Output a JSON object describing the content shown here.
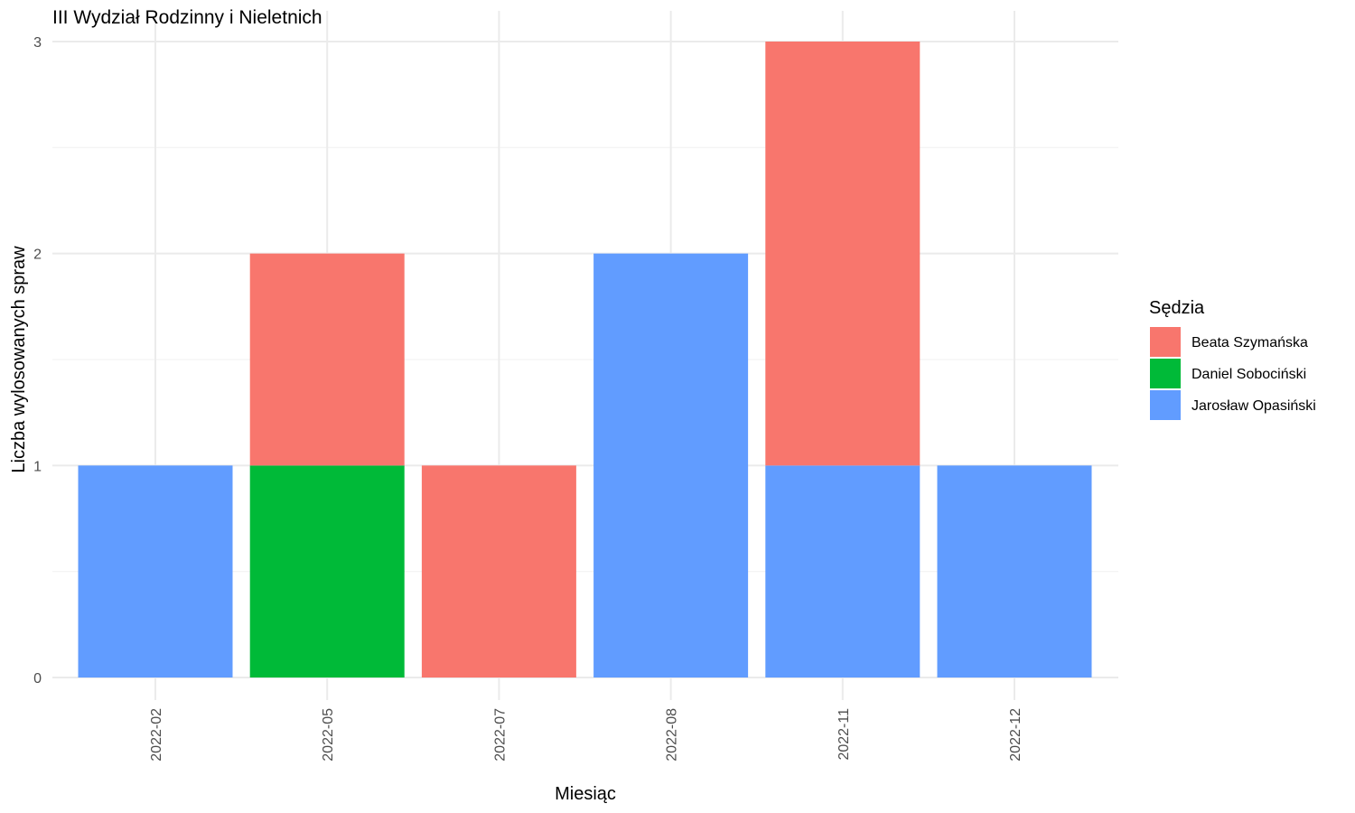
{
  "chart_data": {
    "type": "bar",
    "stacked": true,
    "title": "III Wydział Rodzinny i Nieletnich",
    "xlabel": "Miesiąc",
    "ylabel": "Liczba wylosowanych spraw",
    "categories": [
      "2022-02",
      "2022-05",
      "2022-07",
      "2022-08",
      "2022-11",
      "2022-12"
    ],
    "ylim": [
      0,
      3
    ],
    "yticks": [
      0,
      1,
      2,
      3
    ],
    "grid": true,
    "legend": {
      "title": "Sędzia",
      "position": "right"
    },
    "series": [
      {
        "name": "Jarosław Opasiński",
        "color": "#619CFF",
        "values": [
          1,
          0,
          0,
          2,
          1,
          1
        ]
      },
      {
        "name": "Daniel Sobociński",
        "color": "#00BA38",
        "values": [
          0,
          1,
          0,
          0,
          0,
          0
        ]
      },
      {
        "name": "Beata Szymańska",
        "color": "#F8766D",
        "values": [
          0,
          1,
          1,
          0,
          2,
          0
        ]
      }
    ],
    "legend_order": [
      "Beata Szymańska",
      "Daniel Sobociński",
      "Jarosław Opasiński"
    ]
  }
}
